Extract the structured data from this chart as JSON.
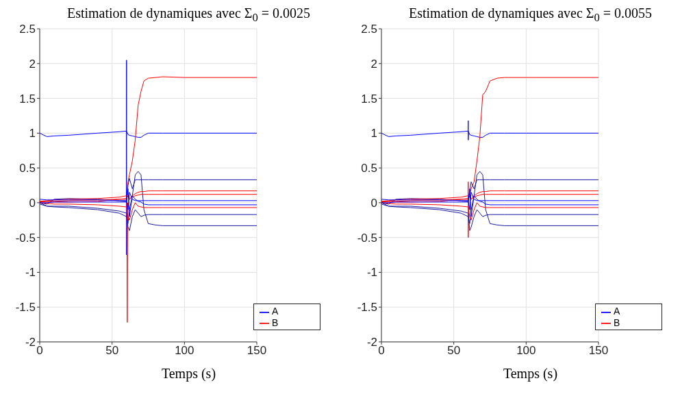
{
  "chart_data": [
    {
      "type": "line",
      "title": "Estimation de dynamiques avec Σ$_{0}$ = 0.0025",
      "xlabel": "Temps (s)",
      "x": [
        0,
        5,
        10,
        20,
        40,
        55,
        60,
        61,
        62,
        64,
        66,
        68,
        70,
        72,
        75,
        80,
        85,
        100,
        150
      ],
      "xlim": [
        0,
        150
      ],
      "xticks": [
        0,
        50,
        100,
        150
      ],
      "ylim": [
        -2,
        2.5
      ],
      "yticks": [
        -2,
        -1.5,
        -1,
        -0.5,
        0,
        0.5,
        1,
        1.5,
        2,
        2.5
      ],
      "grid": true,
      "legend": "bottom right",
      "series": [
        {
          "name": "A",
          "color": "#0000ff",
          "values": [
            1,
            0.95,
            0.96,
            0.97,
            1,
            1.02,
            1.03,
            0.98,
            0.97,
            0.96,
            0.95,
            0.94,
            0.94,
            0.97,
            1,
            1,
            1,
            1,
            1
          ]
        },
        {
          "name": "B",
          "color": "#ff0000",
          "values": [
            0.02,
            0.01,
            0.01,
            0.01,
            0.02,
            0.05,
            0.05,
            0.3,
            0.4,
            0.6,
            0.9,
            1.4,
            1.6,
            1.75,
            1.79,
            1.8,
            1.81,
            1.8,
            1.8
          ]
        },
        {
          "color": "#0000ff",
          "x": [
            59.9,
            60,
            60,
            60.2
          ],
          "values": [
            0,
            2.05,
            -0.75,
            0
          ]
        },
        {
          "color": "#ff0000",
          "x": [
            60.2,
            60.5,
            60.8
          ],
          "values": [
            0,
            -1.72,
            0
          ]
        },
        {
          "color": "#1a1aa0",
          "values": [
            0,
            -0.02,
            0.05,
            0.06,
            0.05,
            0.03,
            0.02,
            0.25,
            0.35,
            0.2,
            0.33,
            0.33,
            0.33,
            0.33,
            0.33,
            0.33,
            0.33,
            0.33,
            0.33
          ]
        },
        {
          "color": "#1a1aa0",
          "values": [
            0,
            -0.05,
            -0.06,
            -0.07,
            -0.1,
            -0.15,
            -0.2,
            -0.3,
            -0.1,
            0.1,
            0.4,
            0.45,
            0.4,
            -0.1,
            -0.3,
            -0.32,
            -0.33,
            -0.33,
            -0.33
          ]
        },
        {
          "color": "#1a1aa0",
          "values": [
            -0.02,
            -0.05,
            -0.05,
            -0.05,
            -0.08,
            -0.12,
            -0.15,
            -0.35,
            -0.4,
            -0.2,
            -0.1,
            -0.15,
            -0.2,
            -0.18,
            -0.17,
            -0.17,
            -0.17,
            -0.17,
            -0.17
          ]
        },
        {
          "color": "#ff0000",
          "values": [
            0.02,
            0.03,
            0.04,
            0.05,
            0.06,
            0.08,
            0.1,
            0.12,
            0.05,
            0.1,
            0.13,
            0.15,
            0.16,
            0.16,
            0.17,
            0.17,
            0.17,
            0.17,
            0.17
          ]
        },
        {
          "color": "#ff0000",
          "values": [
            0,
            -0.01,
            -0.02,
            -0.02,
            -0.03,
            -0.05,
            -0.06,
            -0.2,
            -0.25,
            -0.1,
            0,
            -0.05,
            -0.06,
            -0.07,
            -0.07,
            -0.07,
            -0.07,
            -0.07,
            -0.07
          ]
        },
        {
          "color": "#ff0000",
          "values": [
            0.01,
            0.02,
            0.02,
            0.03,
            0.04,
            0.05,
            0.06,
            0.1,
            0.05,
            0.08,
            0.1,
            0.11,
            0.12,
            0.12,
            0.12,
            0.12,
            0.12,
            0.12,
            0.12
          ]
        },
        {
          "color": "#0000ff",
          "values": [
            0,
            0,
            0.01,
            0.01,
            0.01,
            0.01,
            0.01,
            0.2,
            -0.2,
            0.1,
            0.05,
            0.02,
            0.01,
            -0.02,
            -0.03,
            -0.03,
            -0.03,
            -0.03,
            -0.03
          ]
        },
        {
          "color": "#0000ff",
          "values": [
            0.05,
            0.04,
            0.04,
            0.04,
            0.04,
            0.03,
            0.03,
            -0.1,
            0.15,
            0.05,
            0.03,
            0.03,
            0.03,
            0.03,
            0.03,
            0.03,
            0.03,
            0.03,
            0.03
          ]
        }
      ]
    },
    {
      "type": "line",
      "title": "Estimation de dynamiques avec Σ$_{0}$ = 0.0055",
      "xlabel": "Temps (s)",
      "x": [
        0,
        5,
        10,
        20,
        40,
        55,
        60,
        61,
        62,
        64,
        66,
        68,
        70,
        72,
        75,
        80,
        85,
        100,
        150
      ],
      "xlim": [
        0,
        150
      ],
      "xticks": [
        0,
        50,
        100,
        150
      ],
      "ylim": [
        -2,
        2.5
      ],
      "yticks": [
        -2,
        -1.5,
        -1,
        -0.5,
        0,
        0.5,
        1,
        1.5,
        2,
        2.5
      ],
      "grid": true,
      "legend": "bottom right",
      "series": [
        {
          "name": "A",
          "color": "#0000ff",
          "values": [
            1,
            0.95,
            0.96,
            0.97,
            1,
            1.02,
            1.03,
            0.98,
            0.97,
            0.96,
            0.95,
            0.94,
            0.94,
            0.97,
            1,
            1,
            1,
            1,
            1
          ]
        },
        {
          "name": "B",
          "color": "#ff0000",
          "values": [
            0.02,
            0.01,
            0.01,
            0.01,
            0.02,
            0.05,
            0.05,
            0.1,
            0.2,
            0.3,
            0.6,
            0.95,
            1.55,
            1.6,
            1.75,
            1.79,
            1.8,
            1.8,
            1.8
          ]
        },
        {
          "color": "#0000ff",
          "x": [
            59.9,
            60,
            60,
            60.2
          ],
          "values": [
            1,
            1.18,
            0.9,
            1
          ]
        },
        {
          "color": "#ff0000",
          "x": [
            59.8,
            60,
            60,
            60.3
          ],
          "values": [
            0,
            0.3,
            -0.5,
            0
          ]
        },
        {
          "color": "#1a1aa0",
          "values": [
            0,
            -0.02,
            0.05,
            0.06,
            0.05,
            0.03,
            0.02,
            0.15,
            0.3,
            0.2,
            0.33,
            0.33,
            0.33,
            0.33,
            0.33,
            0.33,
            0.33,
            0.33,
            0.33
          ]
        },
        {
          "color": "#1a1aa0",
          "values": [
            0,
            -0.05,
            -0.06,
            -0.07,
            -0.1,
            -0.15,
            -0.2,
            -0.3,
            -0.1,
            0.1,
            0.4,
            0.45,
            0.4,
            -0.1,
            -0.3,
            -0.32,
            -0.33,
            -0.33,
            -0.33
          ]
        },
        {
          "color": "#1a1aa0",
          "values": [
            -0.02,
            -0.05,
            -0.05,
            -0.05,
            -0.08,
            -0.12,
            -0.15,
            -0.4,
            -0.35,
            -0.2,
            -0.1,
            -0.15,
            -0.2,
            -0.18,
            -0.17,
            -0.17,
            -0.17,
            -0.17,
            -0.17
          ]
        },
        {
          "color": "#ff0000",
          "values": [
            0.02,
            0.03,
            0.04,
            0.05,
            0.06,
            0.08,
            0.1,
            0.12,
            0.05,
            0.1,
            0.13,
            0.15,
            0.16,
            0.16,
            0.17,
            0.17,
            0.17,
            0.17,
            0.17
          ]
        },
        {
          "color": "#ff0000",
          "values": [
            0,
            -0.01,
            -0.02,
            -0.02,
            -0.03,
            -0.05,
            -0.06,
            -0.2,
            -0.25,
            -0.1,
            0,
            -0.05,
            -0.06,
            -0.07,
            -0.07,
            -0.07,
            -0.07,
            -0.07,
            -0.07
          ]
        },
        {
          "color": "#ff0000",
          "values": [
            0.01,
            0.02,
            0.02,
            0.03,
            0.04,
            0.05,
            0.06,
            0.1,
            0.05,
            0.08,
            0.1,
            0.11,
            0.12,
            0.12,
            0.12,
            0.12,
            0.12,
            0.12,
            0.12
          ]
        },
        {
          "color": "#0000ff",
          "values": [
            0,
            0,
            0.01,
            0.01,
            0.01,
            0.01,
            0.01,
            0.2,
            -0.2,
            0.1,
            0.05,
            0.02,
            0.01,
            -0.02,
            -0.03,
            -0.03,
            -0.03,
            -0.03,
            -0.03
          ]
        },
        {
          "color": "#0000ff",
          "values": [
            0.05,
            0.04,
            0.04,
            0.04,
            0.04,
            0.03,
            0.03,
            -0.1,
            0.15,
            0.05,
            0.03,
            0.03,
            0.03,
            0.03,
            0.03,
            0.03,
            0.03,
            0.03,
            0.03
          ]
        }
      ]
    }
  ]
}
